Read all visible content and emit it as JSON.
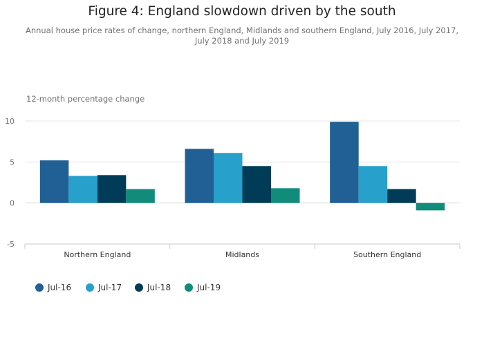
{
  "title": "Figure 4: England slowdown driven by the south",
  "subtitle": "Annual house price rates of change, northern England, Midlands and southern England, July 2016, July 2017, July 2018 and July 2019",
  "chart_data": {
    "type": "bar",
    "title": "Figure 4: England slowdown driven by the south",
    "subtitle": "Annual house price rates of change, northern England, Midlands and southern England, July 2016, July 2017, July 2018 and July 2019",
    "ylabel": "12-month percentage change",
    "xlabel": "",
    "categories": [
      "Northern England",
      "Midlands",
      "Southern England"
    ],
    "ylim": [
      -5,
      10
    ],
    "yticks": [
      10,
      5,
      0,
      -5
    ],
    "grid": true,
    "legend_position": "bottom-left",
    "series": [
      {
        "name": "Jul-16",
        "color": "#206095",
        "values": [
          5.2,
          6.6,
          9.9
        ]
      },
      {
        "name": "Jul-17",
        "color": "#27a0cc",
        "values": [
          3.3,
          6.1,
          4.5
        ]
      },
      {
        "name": "Jul-18",
        "color": "#003c57",
        "values": [
          3.4,
          4.5,
          1.7
        ]
      },
      {
        "name": "Jul-19",
        "color": "#118c7b",
        "values": [
          1.7,
          1.8,
          -0.9
        ]
      }
    ]
  }
}
